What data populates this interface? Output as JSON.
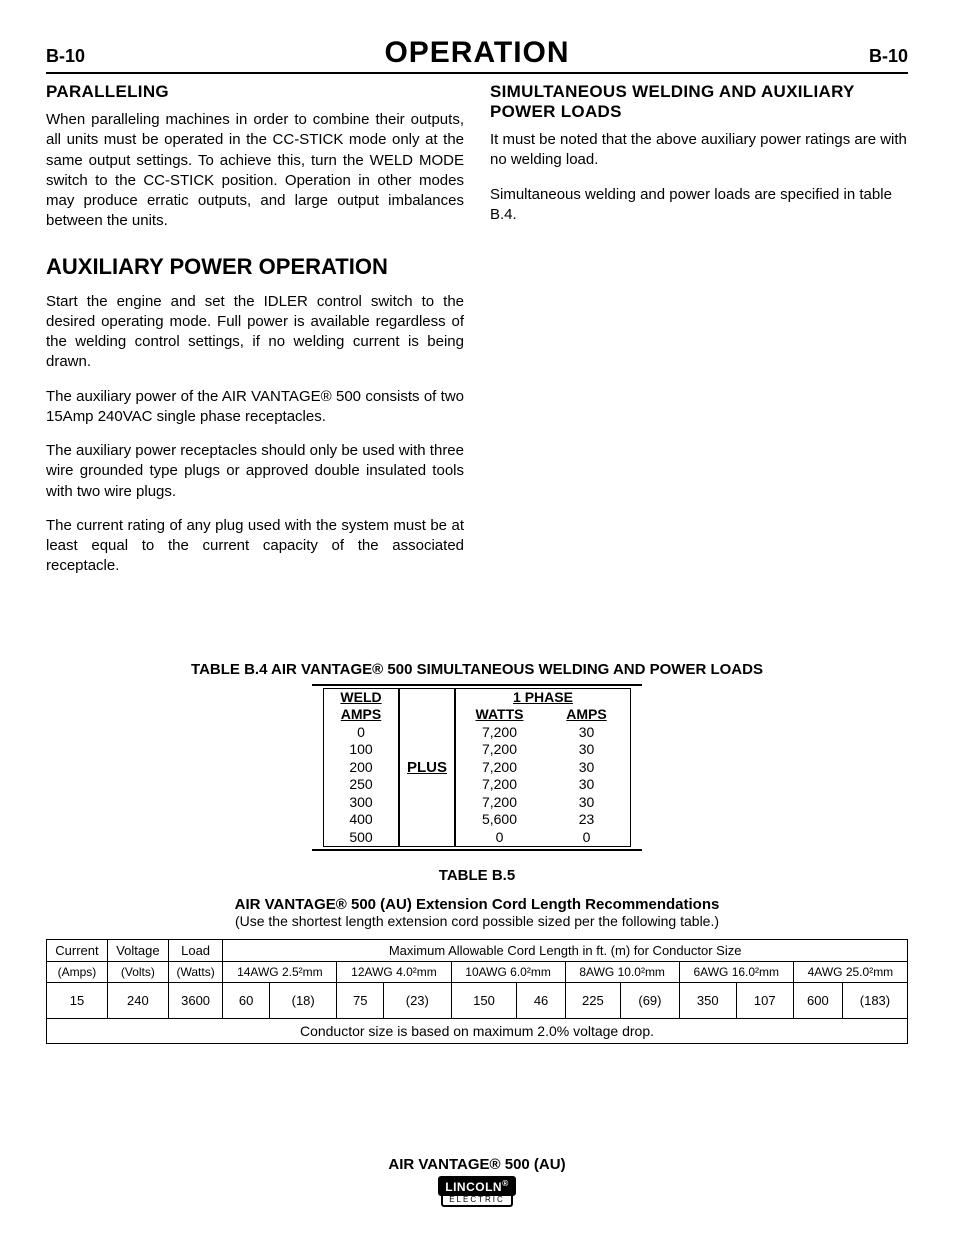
{
  "header": {
    "left": "B-10",
    "title": "OPERATION",
    "right": "B-10"
  },
  "left_col": {
    "h1": "PARALLELING",
    "p1": "When paralleling machines in order to combine their outputs, all units must be operated in the CC-STICK mode only at the same output settings. To achieve this, turn the WELD MODE switch to the CC-STICK position. Operation in other modes may produce erratic outputs, and large output imbalances between the units.",
    "h2": "AUXILIARY POWER OPERATION",
    "p2": "Start the engine and set the IDLER control switch to the desired operating mode. Full power is available regardless of the welding control settings, if no welding current is being drawn.",
    "p3": "The auxiliary power of the AIR VANTAGE® 500 consists of two 15Amp 240VAC single phase receptacles.",
    "p4": "The auxiliary power receptacles should only be used with three wire grounded type plugs or approved double insulated tools with two wire plugs.",
    "p5": "The current rating of any plug used with the system must be at least equal to the current capacity of the associated receptacle."
  },
  "right_col": {
    "h1": "SIMULTANEOUS WELDING AND AUXILIARY POWER LOADS",
    "p1": "It must be noted that the above auxiliary power ratings are with no welding load.",
    "p2": "Simultaneous welding and power loads are specified in table B.4."
  },
  "table_b4": {
    "caption": "TABLE B.4 AIR VANTAGE® 500 SIMULTANEOUS WELDING AND POWER LOADS",
    "weld_label": "WELD",
    "amps_label": "AMPS",
    "plus_label": "PLUS",
    "phase_label": "1 PHASE",
    "watts_label": "WATTS",
    "amps2_label": "AMPS",
    "rows": [
      {
        "weld": "0",
        "watts": "7,200",
        "amps": "30"
      },
      {
        "weld": "100",
        "watts": "7,200",
        "amps": "30"
      },
      {
        "weld": "200",
        "watts": "7,200",
        "amps": "30"
      },
      {
        "weld": "250",
        "watts": "7,200",
        "amps": "30"
      },
      {
        "weld": "300",
        "watts": "7,200",
        "amps": "30"
      },
      {
        "weld": "400",
        "watts": "5,600",
        "amps": "23"
      },
      {
        "weld": "500",
        "watts": "0",
        "amps": "0"
      }
    ]
  },
  "table_b5": {
    "title1": "TABLE B.5",
    "title2": "AIR VANTAGE® 500 (AU) Extension Cord Length Recommendations",
    "note": "(Use the shortest length extension cord possible sized per the following table.)",
    "h_current": "Current",
    "h_voltage": "Voltage",
    "h_load": "Load",
    "h_span": "Maximum Allowable Cord Length in ft. (m) for Conductor Size",
    "u_amps": "(Amps)",
    "u_volts": "(Volts)",
    "u_watts": "(Watts)",
    "sizes": [
      "14AWG 2.5²mm",
      "12AWG 4.0²mm",
      "10AWG 6.0²mm",
      "8AWG 10.0²mm",
      "6AWG 16.0²mm",
      "4AWG 25.0²mm"
    ],
    "row": {
      "amps": "15",
      "volts": "240",
      "watts": "3600",
      "vals": [
        "60",
        "(18)",
        "75",
        "(23)",
        "150",
        "46",
        "225",
        "(69)",
        "350",
        "107",
        "600",
        "(183)"
      ]
    },
    "footnote": "Conductor size is based on maximum 2.0% voltage drop."
  },
  "footer": {
    "model": "AIR VANTAGE® 500 (AU)",
    "brand_top": "LINCOLN",
    "brand_reg": "®",
    "brand_bot": "ELECTRIC"
  }
}
